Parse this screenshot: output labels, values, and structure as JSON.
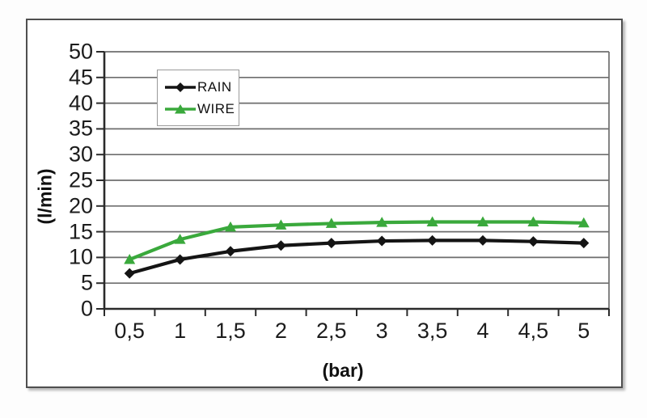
{
  "chart_data": {
    "type": "line",
    "title": "",
    "xlabel": "(bar)",
    "ylabel": "(l/min)",
    "x": [
      0.5,
      1,
      1.5,
      2,
      2.5,
      3,
      3.5,
      4,
      4.5,
      5
    ],
    "xtick_labels": [
      "0,5",
      "1",
      "1,5",
      "2",
      "2,5",
      "3",
      "3,5",
      "4",
      "4,5",
      "5"
    ],
    "ylim": [
      0,
      50
    ],
    "ytick_step": 5,
    "ytick_labels": [
      "0",
      "5",
      "10",
      "15",
      "20",
      "25",
      "30",
      "35",
      "40",
      "45",
      "50"
    ],
    "grid": "horizontal",
    "legend_position": "inside-upper-left",
    "series": [
      {
        "name": "RAIN",
        "color": "#141414",
        "marker": "diamond",
        "values": [
          6.9,
          9.6,
          11.2,
          12.3,
          12.8,
          13.2,
          13.3,
          13.3,
          13.1,
          12.8
        ]
      },
      {
        "name": "WIRE",
        "color": "#3aa93c",
        "marker": "triangle",
        "values": [
          9.6,
          13.5,
          15.9,
          16.3,
          16.6,
          16.8,
          16.9,
          16.9,
          16.9,
          16.7
        ]
      }
    ]
  },
  "colors": {
    "gridline": "#6e6e6e",
    "axis": "#2b2b2b",
    "frame_border": "#4f4f4f"
  }
}
